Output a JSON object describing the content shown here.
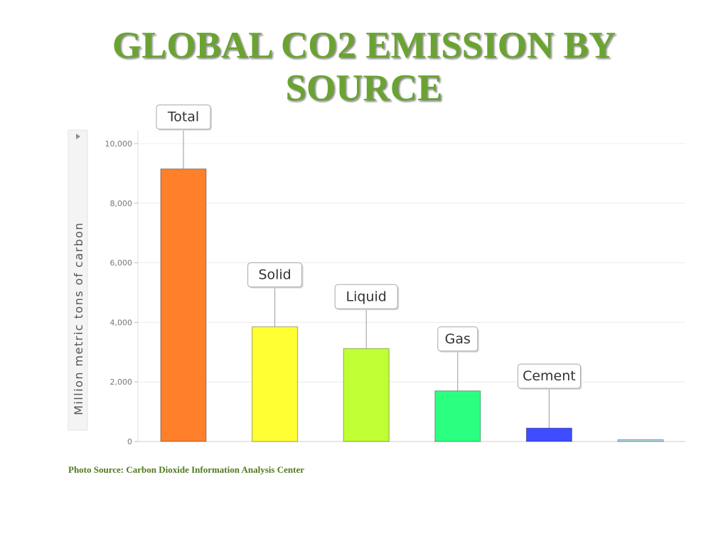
{
  "title": {
    "line1": "GLOBAL CO2 EMISSION BY",
    "line2": "SOURCE"
  },
  "source": "Photo Source: Carbon Dioxide Information Analysis Center",
  "chart_data": {
    "type": "bar",
    "ylabel": "Million metric tons of carbon",
    "ylim": [
      0,
      10000
    ],
    "yticks": [
      0,
      2000,
      4000,
      6000,
      8000,
      10000
    ],
    "ytick_labels": [
      "0",
      "2,000",
      "4,000",
      "6,000",
      "8,000",
      "10,000"
    ],
    "grid": true,
    "bars": [
      {
        "label": "Total",
        "value": 9150,
        "color": "#ff7f2a"
      },
      {
        "label": "Solid",
        "value": 3850,
        "color": "#ffff33"
      },
      {
        "label": "Liquid",
        "value": 3120,
        "color": "#bfff33"
      },
      {
        "label": "Gas",
        "value": 1700,
        "color": "#2aff80"
      },
      {
        "label": "Cement",
        "value": 450,
        "color": "#3d4dff"
      },
      {
        "label": "",
        "value": 60,
        "color": "#add8e6"
      }
    ]
  }
}
